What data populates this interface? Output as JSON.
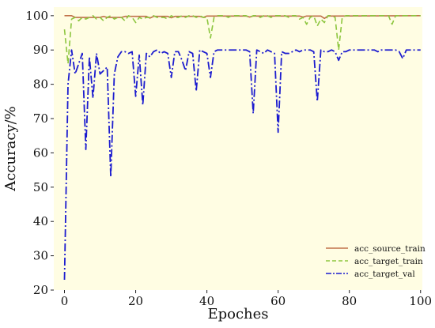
{
  "chart_data": {
    "type": "line",
    "xlabel": "Epoches",
    "ylabel": "Accuracy/%",
    "xlim": [
      -3,
      100.5
    ],
    "ylim": [
      20,
      102.5
    ],
    "xticks": [
      0,
      20,
      40,
      60,
      80,
      100
    ],
    "yticks": [
      20,
      30,
      40,
      50,
      60,
      70,
      80,
      90,
      100
    ],
    "grid": false,
    "legend_position": "bottom-right",
    "plot_background": "#fffde3",
    "series": [
      {
        "name": "acc_source_train",
        "color": "#c0714a",
        "style": "solid",
        "x": [
          0,
          2,
          3,
          10,
          11,
          12,
          16,
          17,
          23,
          24,
          25,
          29,
          30,
          31,
          38,
          39,
          40,
          51,
          52,
          53,
          66,
          67,
          68,
          72,
          73,
          74,
          100
        ],
        "y": [
          100,
          100,
          99.5,
          99.5,
          99.8,
          99.5,
          99.5,
          99.8,
          99.8,
          99.3,
          99.8,
          99.8,
          99.4,
          99.8,
          99.8,
          99.5,
          99.9,
          99.9,
          99.6,
          99.9,
          99.9,
          99.6,
          99.9,
          99.9,
          99.2,
          99.9,
          100
        ]
      },
      {
        "name": "acc_target_train",
        "color": "#8dc63f",
        "style": "dashed",
        "x": [
          0,
          1,
          2,
          3,
          4,
          5,
          6,
          7,
          8,
          9,
          10,
          11,
          12,
          13,
          14,
          15,
          16,
          17,
          18,
          19,
          20,
          21,
          22,
          23,
          24,
          25,
          26,
          27,
          28,
          29,
          30,
          31,
          32,
          33,
          34,
          35,
          36,
          37,
          38,
          39,
          40,
          41,
          42,
          43,
          44,
          45,
          46,
          47,
          48,
          49,
          50,
          51,
          52,
          53,
          54,
          55,
          56,
          57,
          58,
          59,
          60,
          61,
          62,
          63,
          64,
          65,
          66,
          67,
          68,
          69,
          70,
          71,
          72,
          73,
          74,
          75,
          76,
          77,
          78,
          79,
          80,
          81,
          82,
          83,
          84,
          85,
          86,
          87,
          88,
          89,
          90,
          91,
          92,
          93,
          94,
          95,
          96,
          97,
          98,
          99,
          100
        ],
        "y": [
          96,
          86,
          99,
          99.5,
          98.5,
          99.5,
          99,
          99.5,
          100,
          99,
          99.5,
          98.5,
          99.5,
          100,
          99,
          99.5,
          99.5,
          98.5,
          100,
          99.5,
          98,
          99.5,
          99,
          99.5,
          99.5,
          100,
          99.5,
          99.5,
          99.5,
          99,
          100,
          99.5,
          99.5,
          100,
          99.5,
          100,
          100,
          99.5,
          100,
          99.5,
          99.5,
          93.5,
          99.5,
          100,
          100,
          100,
          99.5,
          100,
          100,
          100,
          100,
          100,
          99.5,
          100,
          100,
          99.5,
          100,
          100,
          99.5,
          100,
          100,
          100,
          100,
          99.5,
          100,
          100,
          99,
          99.5,
          97.5,
          99.5,
          100,
          97,
          99,
          98,
          100,
          100,
          99.5,
          90,
          99.5,
          100,
          100,
          100,
          100,
          100,
          100,
          100,
          100,
          100,
          100,
          100,
          100,
          100,
          97.5,
          100,
          100,
          100,
          100,
          100,
          100,
          100,
          100
        ]
      },
      {
        "name": "acc_target_val",
        "color": "#1c1ccf",
        "style": "dashdot",
        "x": [
          0,
          1,
          2,
          3,
          4,
          5,
          6,
          7,
          8,
          9,
          10,
          11,
          12,
          13,
          14,
          15,
          16,
          17,
          18,
          19,
          20,
          21,
          22,
          23,
          24,
          25,
          26,
          27,
          28,
          29,
          30,
          31,
          32,
          33,
          34,
          35,
          36,
          37,
          38,
          39,
          40,
          41,
          42,
          43,
          44,
          45,
          46,
          47,
          48,
          49,
          50,
          51,
          52,
          53,
          54,
          55,
          56,
          57,
          58,
          59,
          60,
          61,
          62,
          63,
          64,
          65,
          66,
          67,
          68,
          69,
          70,
          71,
          72,
          73,
          74,
          75,
          76,
          77,
          78,
          79,
          80,
          81,
          82,
          83,
          84,
          85,
          86,
          87,
          88,
          89,
          90,
          91,
          92,
          93,
          94,
          95,
          96,
          97,
          98,
          99,
          100
        ],
        "y": [
          23,
          80,
          90,
          83,
          86,
          89,
          61,
          88,
          76,
          89,
          83,
          84,
          85,
          53,
          83,
          88,
          89.5,
          89.5,
          89,
          89.5,
          76.5,
          88.5,
          74,
          89,
          88,
          89.5,
          90,
          89,
          89.5,
          89,
          82,
          89.5,
          89.5,
          87,
          84,
          89.5,
          89,
          78,
          90,
          89.5,
          89,
          82,
          89.5,
          90,
          90,
          90,
          90,
          90,
          90,
          90,
          90,
          90,
          89.5,
          71.5,
          90,
          89.5,
          89,
          90,
          89.5,
          89,
          66,
          89.5,
          89,
          89,
          89.5,
          90,
          89.5,
          90,
          90,
          90,
          89.5,
          75,
          90,
          89.5,
          89.5,
          90,
          89.5,
          87,
          89.5,
          89.5,
          90,
          90,
          90,
          90,
          90,
          90,
          90,
          90,
          89.5,
          90,
          90,
          90,
          90,
          90,
          89.5,
          87.5,
          90,
          90,
          90,
          90,
          90
        ]
      }
    ]
  }
}
